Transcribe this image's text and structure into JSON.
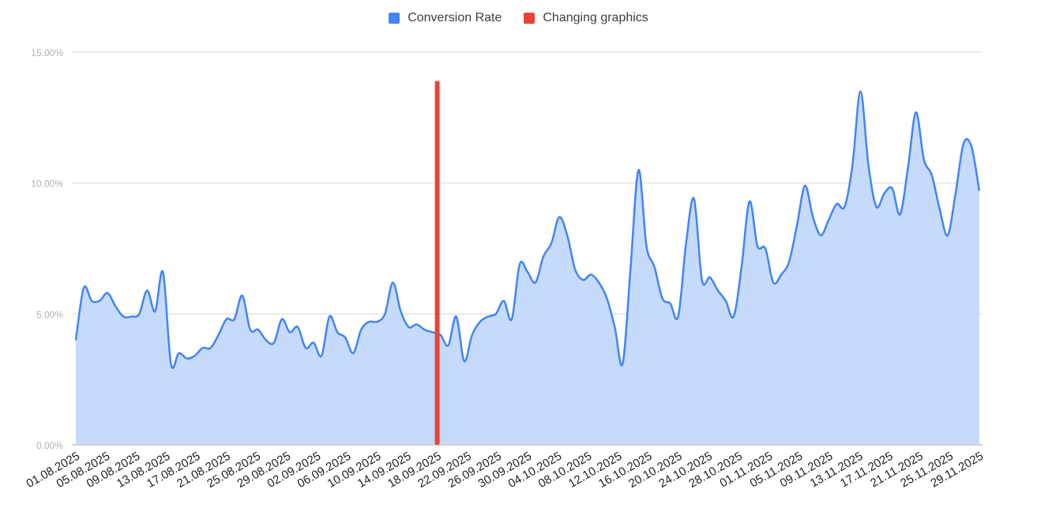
{
  "chart_data": {
    "type": "area",
    "title": "",
    "xlabel": "",
    "ylabel": "",
    "y_ticks": [
      "0.00%",
      "5.00%",
      "10.00%",
      "15.00%"
    ],
    "ylim": [
      0,
      15
    ],
    "grid": true,
    "legend_position": "top",
    "x_tick_labels": [
      "01.08.2025",
      "05.08.2025",
      "09.08.2025",
      "13.08.2025",
      "17.08.2025",
      "21.08.2025",
      "25.08.2025",
      "29.08.2025",
      "02.09.2025",
      "06.09.2025",
      "10.09.2025",
      "14.09.2025",
      "18.09.2025",
      "22.09.2025",
      "26.09.2025",
      "30.09.2025",
      "04.10.2025",
      "08.10.2025",
      "12.10.2025",
      "16.10.2025",
      "20.10.2025",
      "24.10.2025",
      "28.10.2025",
      "01.11.2025",
      "05.11.2025",
      "09.11.2025",
      "13.11.2025",
      "17.11.2025",
      "21.11.2025",
      "25.11.2025",
      "29.11.2025"
    ],
    "series": [
      {
        "name": "Conversion Rate",
        "color": "#4285f4",
        "fill": "#c6dafc",
        "values": [
          4.0,
          6.0,
          5.5,
          5.5,
          5.8,
          5.3,
          4.9,
          4.9,
          5.0,
          5.9,
          5.1,
          6.6,
          3.1,
          3.5,
          3.3,
          3.4,
          3.7,
          3.7,
          4.2,
          4.8,
          4.8,
          5.7,
          4.4,
          4.4,
          4.0,
          3.9,
          4.8,
          4.3,
          4.5,
          3.7,
          3.9,
          3.4,
          4.9,
          4.3,
          4.1,
          3.5,
          4.4,
          4.7,
          4.7,
          5.0,
          6.2,
          5.1,
          4.5,
          4.6,
          4.4,
          4.3,
          4.2,
          3.8,
          4.9,
          3.2,
          4.2,
          4.7,
          4.9,
          5.0,
          5.5,
          4.8,
          6.9,
          6.6,
          6.2,
          7.2,
          7.7,
          8.7,
          8.0,
          6.7,
          6.3,
          6.5,
          6.2,
          5.6,
          4.5,
          3.1,
          6.8,
          10.5,
          7.6,
          6.8,
          5.6,
          5.4,
          4.9,
          7.7,
          9.4,
          6.3,
          6.4,
          5.9,
          5.5,
          4.9,
          6.8,
          9.3,
          7.6,
          7.5,
          6.2,
          6.5,
          7.0,
          8.4,
          9.9,
          8.7,
          8.0,
          8.6,
          9.2,
          9.1,
          10.7,
          13.5,
          10.7,
          9.1,
          9.6,
          9.8,
          8.8,
          10.6,
          12.7,
          10.9,
          10.3,
          9.0,
          8.0,
          9.6,
          11.5,
          11.4,
          9.7
        ]
      },
      {
        "name": "Changing graphics",
        "color": "#ea4335",
        "x_label": "18.09.2025",
        "value": 13.9
      }
    ]
  }
}
